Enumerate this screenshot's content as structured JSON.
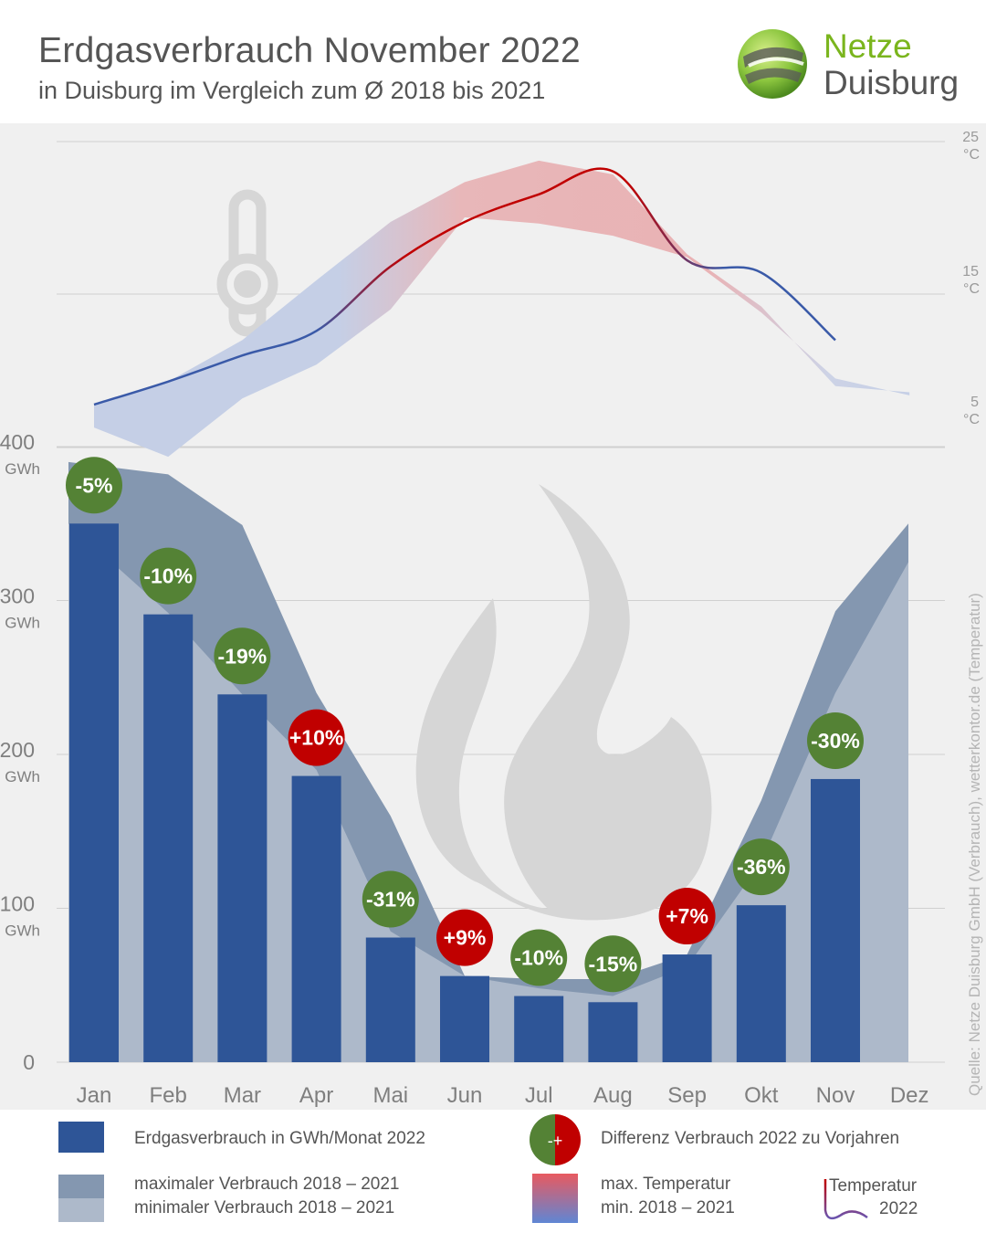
{
  "header": {
    "title": "Erdgasverbrauch November 2022",
    "subtitle": "in Duisburg im Vergleich zum Ø 2018 bis 2021",
    "logo_line1": "Netze",
    "logo_line2": "Duisburg"
  },
  "colors": {
    "bar": "#2e5597",
    "band_max": "#8497b0",
    "band_min": "#adb9ca",
    "negative": "#548235",
    "positive": "#c00000",
    "temp_warm": "#e06060",
    "temp_cold": "#4a6fb5"
  },
  "chart_data": {
    "type": "bar",
    "categories": [
      "Jan",
      "Feb",
      "Mar",
      "Apr",
      "Mai",
      "Jun",
      "Jul",
      "Aug",
      "Sep",
      "Okt",
      "Nov",
      "Dez"
    ],
    "series": [
      {
        "name": "Erdgasverbrauch in GWh/Monat 2022",
        "values": [
          350,
          291,
          239,
          186,
          81,
          56,
          43,
          39,
          70,
          102,
          184,
          null
        ]
      },
      {
        "name": "maximaler Verbrauch 2018 – 2021",
        "values": [
          390,
          382,
          349,
          240,
          160,
          56,
          54,
          54,
          70,
          170,
          293,
          350
        ]
      },
      {
        "name": "minimaler Verbrauch 2018 – 2021",
        "values": [
          350,
          292,
          239,
          190,
          85,
          56,
          48,
          43,
          62,
          130,
          240,
          325
        ]
      }
    ],
    "diff_labels": [
      "-5%",
      "-10%",
      "-19%",
      "+10%",
      "-31%",
      "+9%",
      "-10%",
      "-15%",
      "+7%",
      "-36%",
      "-30%",
      ""
    ],
    "temperature": {
      "unit": "°C",
      "ylim": [
        5,
        25
      ],
      "ticks": [
        "25",
        "15",
        "5"
      ],
      "max_2018_2021": [
        7.8,
        9.3,
        12.0,
        15.9,
        19.7,
        22.3,
        23.7,
        22.8,
        17.6,
        14.2,
        9.0,
        8.6
      ],
      "min_2018_2021": [
        6.3,
        4.4,
        8.2,
        10.4,
        14.0,
        20.0,
        19.6,
        18.8,
        17.4,
        13.8,
        9.5,
        8.4
      ],
      "line_2022": [
        7.8,
        9.3,
        11.0,
        12.6,
        16.8,
        19.7,
        21.5,
        23.0,
        17.2,
        16.4,
        12.0,
        null
      ]
    },
    "ylim": [
      0,
      400
    ],
    "y_ticks": [
      0,
      100,
      200,
      300,
      400
    ],
    "y_unit": "GWh",
    "grid": true
  },
  "legend": {
    "bars_label": "Erdgasverbrauch in GWh/Monat 2022",
    "diff_label": "Differenz Verbrauch 2022 zu Vorjahren",
    "diff_symbol": "-+",
    "max_label": "maximaler Verbrauch 2018 – 2021",
    "min_label": "minimaler  Verbrauch 2018 – 2021",
    "temp_band_line1": "max. Temperatur",
    "temp_band_line2": "min.   2018 – 2021",
    "temp_line_line1": "Temperatur",
    "temp_line_line2": "2022"
  },
  "source": "Quelle: Netze Duisburg GmbH (Verbrauch), wetterkontor.de (Temperatur)",
  "icons": [
    "thermometer-icon",
    "flame-icon",
    "netze-duisburg-logo"
  ]
}
